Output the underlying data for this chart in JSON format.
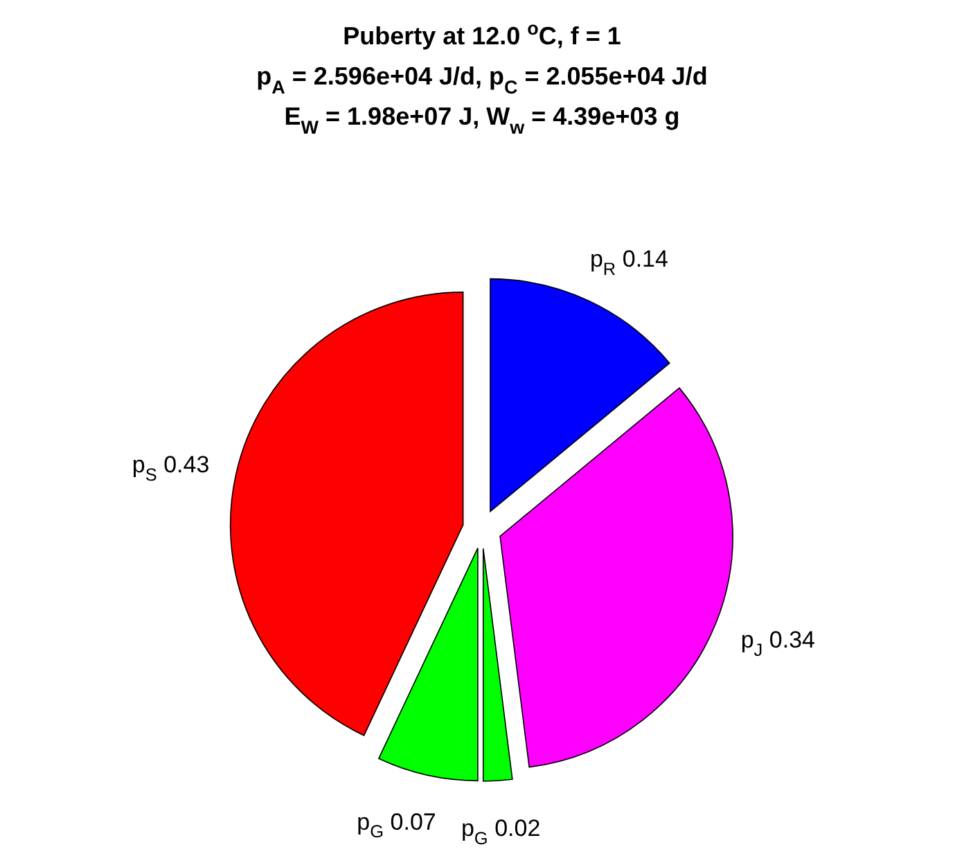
{
  "chart_data": {
    "type": "pie",
    "title": "Puberty at 12.0 $^{o}$C, f = 1\np$_{A}$ = 2.596e+04 J/d,  p$_{C}$ = 2.055e+04 J/d\nE$_{W}$ = 1.98e+07 J, W$_{w}$ = 4.39e+03 g",
    "categories": [
      "p$_{R}$",
      "p$_{J}$",
      "p$_{G}$",
      "p$_{G}$",
      "p$_{S}$"
    ],
    "values": [
      0.14,
      0.34,
      0.02,
      0.07,
      0.43
    ],
    "colors": [
      "#0000ff",
      "#ff00ff",
      "#00ff00",
      "#00ff00",
      "#ff0000"
    ],
    "data_labels": true
  }
}
